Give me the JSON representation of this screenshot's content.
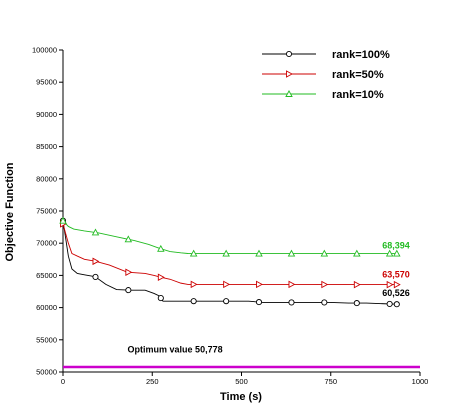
{
  "chart_data": {
    "type": "line",
    "xlabel": "Time (s)",
    "ylabel": "Objective Function",
    "xlim": [
      0,
      1000
    ],
    "ylim": [
      50000,
      100000
    ],
    "x_ticks": [
      0,
      250,
      500,
      750,
      1000
    ],
    "y_ticks": [
      50000,
      55000,
      60000,
      65000,
      70000,
      75000,
      80000,
      85000,
      90000,
      95000,
      100000
    ],
    "x_tick_labels": [
      "0",
      "250",
      "500",
      "750",
      "1000"
    ],
    "y_tick_labels": [
      "50000",
      "55000",
      "60000",
      "65000",
      "70000",
      "75000",
      "80000",
      "85000",
      "90000",
      "95000",
      "100000"
    ],
    "grid": false,
    "legend_position": "top-right",
    "series": [
      {
        "name": "rank=100%",
        "color": "#000000",
        "marker": "circle",
        "x": [
          0,
          15,
          25,
          40,
          60,
          90,
          120,
          150,
          190,
          230,
          255,
          270,
          280,
          300,
          340,
          380,
          420,
          470,
          520,
          560,
          600,
          650,
          700,
          750,
          800,
          850,
          900,
          935
        ],
        "y": [
          73500,
          68000,
          66000,
          65300,
          65100,
          64800,
          63600,
          62800,
          62700,
          62700,
          62200,
          61800,
          61000,
          61000,
          61000,
          61000,
          61000,
          61000,
          61000,
          60800,
          60800,
          60800,
          60800,
          60800,
          60700,
          60700,
          60600,
          60526
        ],
        "marker_x": [
          0,
          91,
          183,
          274,
          366,
          457,
          549,
          640,
          732,
          823,
          915,
          935
        ],
        "end_label": "60,526"
      },
      {
        "name": "rank=50%",
        "color": "#cc0000",
        "marker": "triangle-right",
        "x": [
          0,
          15,
          25,
          40,
          60,
          90,
          130,
          180,
          230,
          255,
          275,
          300,
          330,
          350,
          380,
          420,
          470,
          520,
          600,
          700,
          800,
          900,
          935
        ],
        "y": [
          73000,
          70000,
          68400,
          68000,
          67500,
          67200,
          66600,
          65500,
          65300,
          65000,
          64700,
          64400,
          63800,
          63600,
          63600,
          63600,
          63600,
          63600,
          63600,
          63600,
          63570,
          63570,
          63570
        ],
        "marker_x": [
          0,
          91,
          183,
          274,
          366,
          457,
          549,
          640,
          732,
          823,
          915,
          935
        ],
        "end_label": "63,570"
      },
      {
        "name": "rank=10%",
        "color": "#22bb22",
        "marker": "triangle-up",
        "x": [
          0,
          15,
          30,
          60,
          100,
          150,
          200,
          240,
          270,
          300,
          330,
          350,
          380,
          420,
          470,
          520,
          600,
          700,
          800,
          900,
          935
        ],
        "y": [
          73500,
          72600,
          72200,
          71900,
          71600,
          71000,
          70400,
          69800,
          69200,
          68700,
          68500,
          68400,
          68394,
          68394,
          68394,
          68394,
          68394,
          68394,
          68394,
          68394,
          68394
        ],
        "marker_x": [
          0,
          91,
          183,
          274,
          366,
          457,
          549,
          640,
          732,
          823,
          915,
          935
        ],
        "end_label": "68,394"
      },
      {
        "name": "",
        "color": "#cc00cc",
        "marker": "none",
        "x": [
          0,
          1000
        ],
        "y": [
          50778,
          50778
        ],
        "marker_x": [],
        "end_label": ""
      }
    ],
    "annotations": [
      {
        "text": "Optimum value 50,778",
        "x": 440,
        "y": 53000,
        "color": "#000000"
      }
    ]
  }
}
